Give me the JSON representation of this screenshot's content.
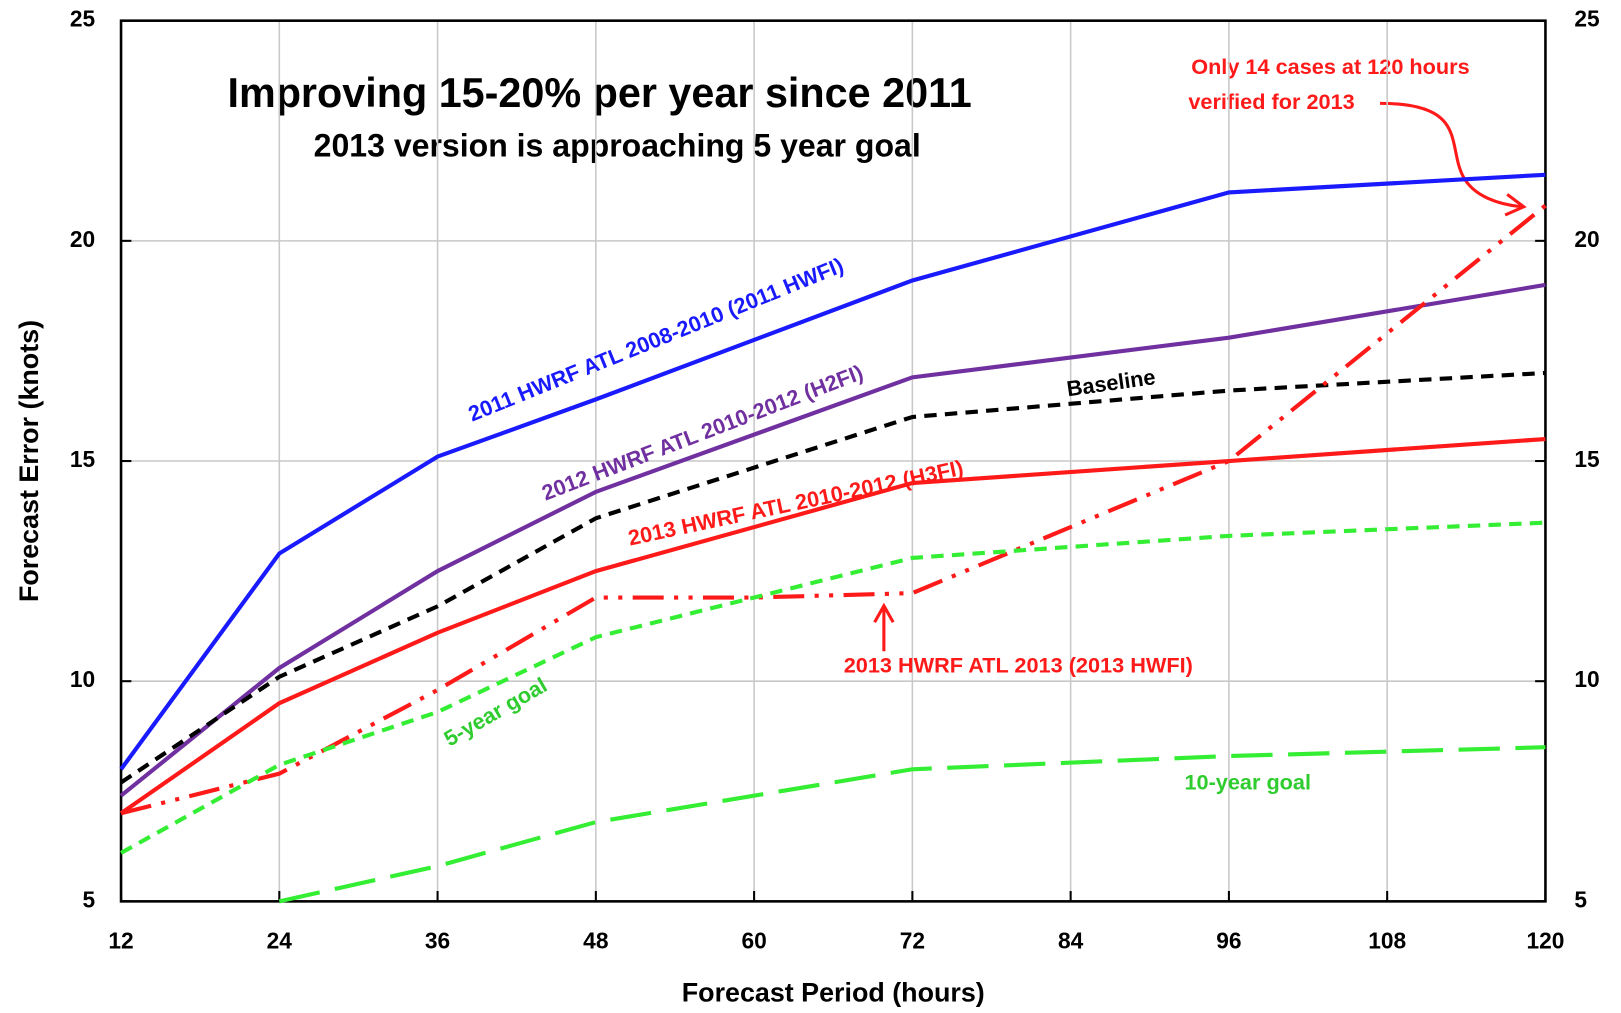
{
  "chart_data": {
    "type": "line",
    "title": "Improving 15-20% per year since 2011",
    "subtitle": "2013 version is approaching 5 year goal",
    "x_label": "Forecast Period (hours)",
    "y_label": "Forecast Error (knots)",
    "xlim": [
      12,
      120
    ],
    "xticks": [
      12,
      24,
      36,
      48,
      60,
      72,
      84,
      96,
      108,
      120
    ],
    "ylim": [
      5,
      25
    ],
    "yticks": [
      5,
      10,
      15,
      20,
      25
    ],
    "y2lim": [
      5,
      25
    ],
    "y2ticks": [
      5,
      10,
      15,
      20,
      25
    ],
    "grid": true,
    "annotations": [
      "Only 14 cases at 120 hours",
      "verified for 2013"
    ],
    "series": [
      {
        "name": "2011 HWRF  ATL 2008-2010 (2011 HWFI)",
        "color": "#1a1aff",
        "dash": "solid",
        "x": [
          12,
          24,
          36,
          48,
          72,
          96,
          120
        ],
        "values": [
          8.0,
          12.9,
          15.1,
          16.4,
          19.1,
          21.1,
          21.5
        ]
      },
      {
        "name": "2012 HWRF  ATL 2010-2012 (H2FI)",
        "color": "#7030a0",
        "dash": "solid",
        "x": [
          12,
          24,
          36,
          48,
          72,
          96,
          120
        ],
        "values": [
          7.4,
          10.3,
          12.5,
          14.3,
          16.9,
          17.8,
          19.0
        ]
      },
      {
        "name": "Baseline",
        "color": "#000000",
        "dash": "dashed",
        "x": [
          12,
          24,
          36,
          48,
          72,
          96,
          120
        ],
        "values": [
          7.7,
          10.1,
          11.7,
          13.7,
          16.0,
          16.6,
          17.0
        ]
      },
      {
        "name": "2013 HWRF  ATL 2010-2012 (H3FI)",
        "color": "#ff1a1a",
        "dash": "solid",
        "x": [
          12,
          24,
          36,
          48,
          72,
          96,
          120
        ],
        "values": [
          7.0,
          9.5,
          11.1,
          12.5,
          14.5,
          15.0,
          15.5
        ]
      },
      {
        "name": "2013 HWRF  ATL 2013 (2013 HWFI)",
        "color": "#ff1a1a",
        "dash": "dashdot",
        "x": [
          12,
          24,
          36,
          48,
          60,
          72,
          96,
          120
        ],
        "values": [
          7.0,
          7.9,
          9.8,
          11.9,
          11.9,
          12.0,
          15.0,
          20.8
        ]
      },
      {
        "name": "5-year goal",
        "color": "#33ee33",
        "dash": "dashed",
        "x": [
          12,
          24,
          36,
          48,
          72,
          96,
          120
        ],
        "values": [
          6.1,
          8.1,
          9.3,
          11.0,
          12.8,
          13.3,
          13.6
        ]
      },
      {
        "name": "10-year goal",
        "color": "#33ee33",
        "dash": "longdash",
        "x": [
          24,
          36,
          48,
          72,
          96,
          120
        ],
        "values": [
          5.0,
          5.8,
          6.8,
          8.0,
          8.3,
          8.5
        ]
      }
    ]
  }
}
